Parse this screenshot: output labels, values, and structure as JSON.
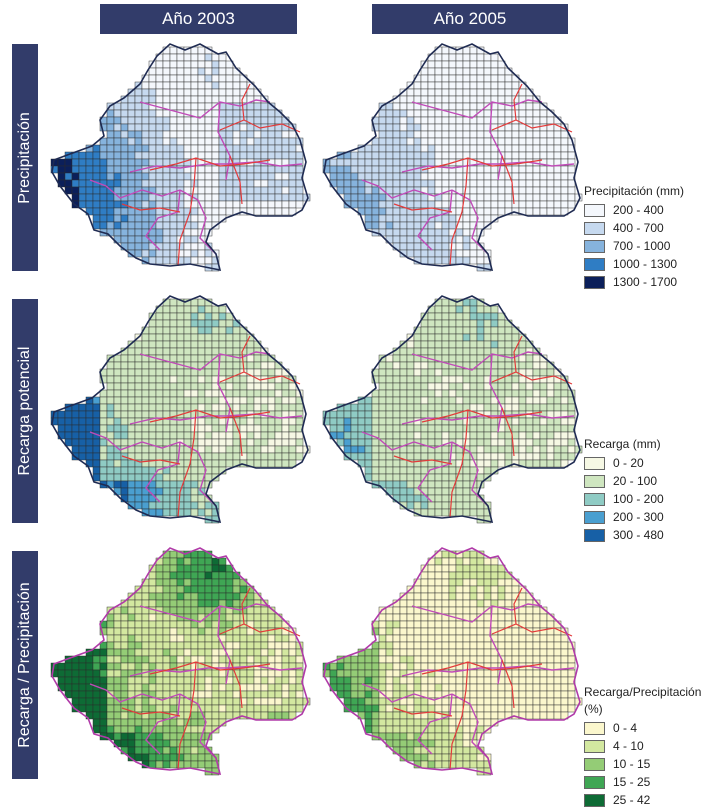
{
  "headers": [
    "Año 2003",
    "Año 2005"
  ],
  "rows": [
    "Precipitación",
    "Recarga potencial",
    "Recarga / Precipitación"
  ],
  "legends": [
    {
      "title": "Precipitación (mm)",
      "items": [
        {
          "label": "200 - 400",
          "color": "#f4f7fc"
        },
        {
          "label": "400 - 700",
          "color": "#c6d9ef"
        },
        {
          "label": "700 - 1000",
          "color": "#86b3dd"
        },
        {
          "label": "1000 - 1300",
          "color": "#2f7dc4"
        },
        {
          "label": "1300 - 1700",
          "color": "#0b1f5a"
        }
      ]
    },
    {
      "title": "Recarga (mm)",
      "items": [
        {
          "label": "0 - 20",
          "color": "#f6f8e4"
        },
        {
          "label": "20 - 100",
          "color": "#cfe6c0"
        },
        {
          "label": "100 - 200",
          "color": "#8fcbc4"
        },
        {
          "label": "200 - 300",
          "color": "#4a9fd0"
        },
        {
          "label": "300 - 480",
          "color": "#1760a6"
        }
      ]
    },
    {
      "title": "Recarga/Precipitación",
      "subtitle": "(%)",
      "items": [
        {
          "label": "0 - 4",
          "color": "#fbf7cd"
        },
        {
          "label": "4 - 10",
          "color": "#d3e8a0"
        },
        {
          "label": "10 - 15",
          "color": "#94cc76"
        },
        {
          "label": "15 - 25",
          "color": "#3fa654"
        },
        {
          "label": "25 - 42",
          "color": "#0e6b35"
        }
      ]
    }
  ]
}
